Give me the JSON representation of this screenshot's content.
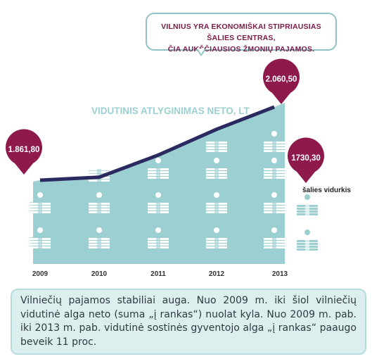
{
  "callout": {
    "line1": "VILNIUS YRA EKONOMIŠKAI STIPRIAUSIAS ŠALIES CENTRAS,",
    "line2": "ČIA AUKŠČIAUSIOS ŽMONIŲ PAJAMOS."
  },
  "description": "Vilniečių pajamos stabiliai auga. Nuo 2009 m. iki šiol vilniečių vidutinė alga neto (suma „į rankas“) nuolat kyla. Nuo 2009 m. pab. iki 2013 m. pab. vidutinė sostinės gyventojo alga „į rankas“ paaugo beveik 11 proc.",
  "chart_data": {
    "type": "line",
    "title": "VIDUTINIS ATLYGINIMAS NETO, LT",
    "categories": [
      "2009",
      "2010",
      "2011",
      "2012",
      "2013"
    ],
    "series": [
      {
        "name": "",
        "values": [
          1861.8,
          1870,
          1930,
          2000,
          2060.5
        ]
      }
    ],
    "point_labels": [
      {
        "index": 0,
        "text": "1.861,80"
      },
      {
        "index": 4,
        "text": "2.060,50"
      }
    ],
    "reference": {
      "label": "šalies vidurkis",
      "value_text": "1730,30",
      "value": 1730.3
    },
    "ylim": [
      1700,
      2080
    ],
    "colors": {
      "area": "#9ccfd1",
      "line": "#2b2a60",
      "marker": "#8e1a4c",
      "title": "#9ccfd1",
      "icon": "#ffffff",
      "reference_icon": "#9ccfd1"
    }
  }
}
